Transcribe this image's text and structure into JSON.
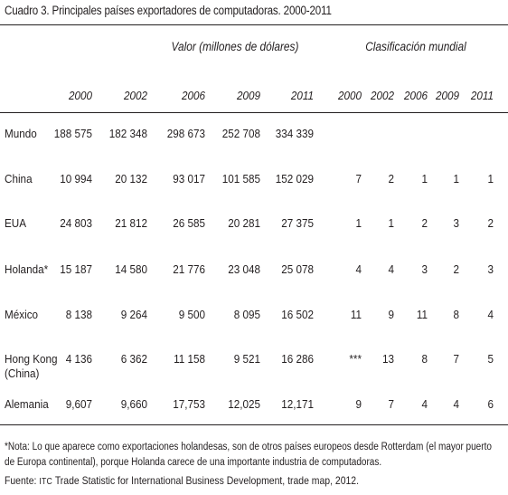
{
  "title": "Cuadro 3. Principales países exportadores de computadoras. 2000-2011",
  "headers": {
    "valor": "Valor (millones de dólares)",
    "clasificacion": "Clasificación mundial",
    "valor_years": [
      "2000",
      "2002",
      "2006",
      "2009",
      "2011"
    ],
    "rank_years": [
      "2000",
      "2002",
      "2006",
      "2009",
      "2011"
    ]
  },
  "rows": [
    {
      "label": [
        "Mundo"
      ],
      "values": [
        "188 575",
        "182 348",
        "298 673",
        "252 708",
        "334 339"
      ],
      "ranks": [
        "",
        "",
        "",
        "",
        ""
      ]
    },
    {
      "label": [
        "China"
      ],
      "values": [
        "10 994",
        "20 132",
        "93 017",
        "101 585",
        "152 029"
      ],
      "ranks": [
        "7",
        "2",
        "1",
        "1",
        "1"
      ]
    },
    {
      "label": [
        "EUA"
      ],
      "values": [
        "24 803",
        "21 812",
        "26 585",
        "20 281",
        "27 375"
      ],
      "ranks": [
        "1",
        "1",
        "2",
        "3",
        "2"
      ]
    },
    {
      "label": [
        "Holanda*"
      ],
      "values": [
        "15 187",
        "14 580",
        "21 776",
        "23 048",
        "25 078"
      ],
      "ranks": [
        "4",
        "4",
        "3",
        "2",
        "3"
      ]
    },
    {
      "label": [
        "México"
      ],
      "values": [
        "8 138",
        "9 264",
        "9 500",
        "8 095",
        "16 502"
      ],
      "ranks": [
        "11",
        "9",
        "11",
        "8",
        "4"
      ]
    },
    {
      "label": [
        "Hong Kong",
        "(China)"
      ],
      "values": [
        "4 136",
        "6 362",
        "11 158",
        "9 521",
        "16 286"
      ],
      "ranks": [
        "***",
        "13",
        "8",
        "7",
        "5"
      ]
    },
    {
      "label": [
        "Alemania"
      ],
      "values": [
        "9,607",
        "9,660",
        "17,753",
        "12,025",
        "12,171"
      ],
      "ranks": [
        "9",
        "7",
        "4",
        "4",
        "6"
      ]
    }
  ],
  "note": "*Nota: Lo que aparece como exportaciones holandesas, son de otros países europeos desde Rotterdam (el mayor puerto de Europa continental), porque Holanda carece de una importante industria de computadoras.",
  "source": {
    "prefix": "Fuente: ",
    "org": "ITC",
    "rest": " Trade Statistic for International Business Development, trade map, 2012."
  }
}
